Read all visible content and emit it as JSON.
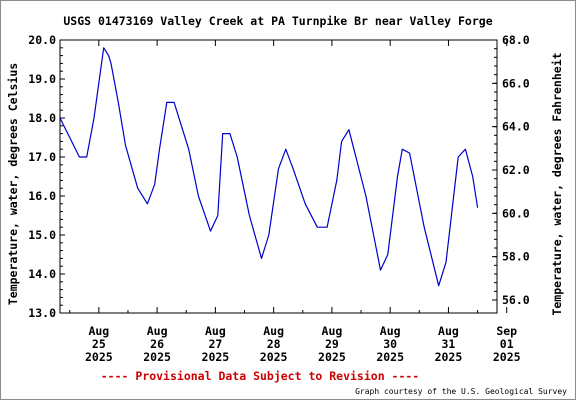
{
  "chart_data": {
    "type": "line",
    "title": "USGS 01473169 Valley Creek at PA Turnpike Br near Valley Forge",
    "ylabel": "Temperature, water, degrees Celsius",
    "ylabel_right": "Temperature, water, degrees Fahrenheit",
    "xlabel": "",
    "ylim": [
      13.0,
      20.0
    ],
    "y_ticks": [
      "13.0",
      "14.0",
      "15.0",
      "16.0",
      "17.0",
      "18.0",
      "19.0",
      "20.0"
    ],
    "ylim_right": [
      55.4,
      68.0
    ],
    "y_ticks_right": [
      "56.0",
      "58.0",
      "60.0",
      "62.0",
      "64.0",
      "66.0",
      "68.0"
    ],
    "xlim": [
      "2025-08-24 20:00",
      "2025-09-01 08:00"
    ],
    "x_ticks": [
      {
        "month": "Aug",
        "day": "25",
        "year": "2025"
      },
      {
        "month": "Aug",
        "day": "26",
        "year": "2025"
      },
      {
        "month": "Aug",
        "day": "27",
        "year": "2025"
      },
      {
        "month": "Aug",
        "day": "28",
        "year": "2025"
      },
      {
        "month": "Aug",
        "day": "29",
        "year": "2025"
      },
      {
        "month": "Aug",
        "day": "30",
        "year": "2025"
      },
      {
        "month": "Aug",
        "day": "31",
        "year": "2025"
      },
      {
        "month": "Sep",
        "day": "01",
        "year": "2025"
      }
    ],
    "grid": false,
    "legend": "none",
    "series": [
      {
        "color": "#0000cc",
        "x": [
          "2025-08-24 20:00",
          "2025-08-25 00:00",
          "2025-08-25 04:00",
          "2025-08-25 07:00",
          "2025-08-25 10:00",
          "2025-08-25 14:00",
          "2025-08-25 16:00",
          "2025-08-25 17:00",
          "2025-08-25 20:00",
          "2025-08-25 23:00",
          "2025-08-26 04:00",
          "2025-08-26 08:00",
          "2025-08-26 11:00",
          "2025-08-26 13:00",
          "2025-08-26 16:00",
          "2025-08-26 19:00",
          "2025-08-27 01:00",
          "2025-08-27 05:00",
          "2025-08-27 10:00",
          "2025-08-27 13:00",
          "2025-08-27 15:00",
          "2025-08-27 18:00",
          "2025-08-27 21:00",
          "2025-08-28 02:00",
          "2025-08-28 07:00",
          "2025-08-28 10:00",
          "2025-08-28 14:00",
          "2025-08-28 17:00",
          "2025-08-28 20:00",
          "2025-08-29 01:00",
          "2025-08-29 06:00",
          "2025-08-29 10:00",
          "2025-08-29 14:00",
          "2025-08-29 16:00",
          "2025-08-29 19:00",
          "2025-08-30 02:00",
          "2025-08-30 08:00",
          "2025-08-30 11:00",
          "2025-08-30 15:00",
          "2025-08-30 17:00",
          "2025-08-30 20:00",
          "2025-08-31 02:00",
          "2025-08-31 08:00",
          "2025-08-31 11:00",
          "2025-08-31 16:00",
          "2025-08-31 19:00",
          "2025-08-31 22:00",
          "2025-09-01 00:00"
        ],
        "y": [
          18.0,
          17.5,
          17.0,
          17.0,
          18.0,
          19.8,
          19.6,
          19.4,
          18.4,
          17.3,
          16.2,
          15.8,
          16.3,
          17.2,
          18.4,
          18.4,
          17.2,
          16.0,
          15.1,
          15.5,
          17.6,
          17.6,
          17.0,
          15.5,
          14.4,
          15.0,
          16.7,
          17.2,
          16.7,
          15.8,
          15.2,
          15.2,
          16.4,
          17.4,
          17.7,
          16.0,
          14.1,
          14.5,
          16.5,
          17.2,
          17.1,
          15.2,
          13.7,
          14.3,
          17.0,
          17.2,
          16.5,
          15.7
        ]
      }
    ]
  },
  "footer": {
    "provisional_text": "---- Provisional Data Subject to Revision ----",
    "credit_text": "Graph courtesy of the U.S. Geological Survey",
    "provisional_color": "#cc0000"
  }
}
